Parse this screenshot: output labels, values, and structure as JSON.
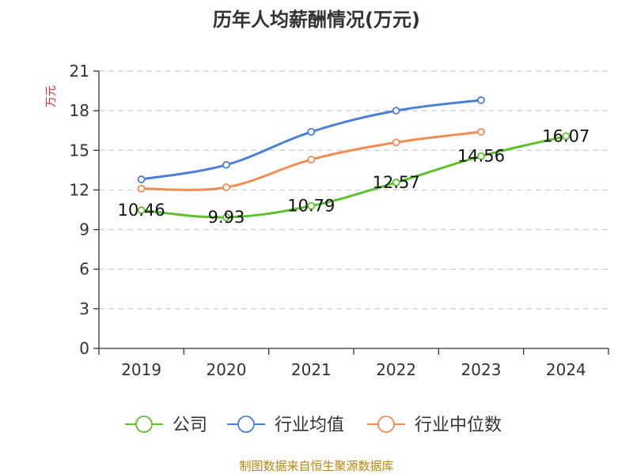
{
  "chart_data": {
    "type": "line",
    "title": "历年人均薪酬情况(万元)",
    "ylabel": "万元",
    "xlabel": "",
    "categories": [
      "2019",
      "2020",
      "2021",
      "2022",
      "2023",
      "2024"
    ],
    "ylim": [
      0,
      21
    ],
    "yticks": [
      0,
      3,
      6,
      9,
      12,
      15,
      18,
      21
    ],
    "grid": "horizontal dashed",
    "legend_position": "bottom",
    "series": [
      {
        "name": "公司",
        "color": "#5ec12e",
        "values": [
          10.46,
          9.93,
          10.79,
          12.57,
          14.56,
          16.07
        ],
        "labels": [
          "10.46",
          "9.93",
          "10.79",
          "12.57",
          "14.56",
          "16.07"
        ]
      },
      {
        "name": "行业均值",
        "color": "#4a7fd6",
        "values": [
          12.8,
          13.9,
          16.4,
          18.0,
          18.8,
          null
        ]
      },
      {
        "name": "行业中位数",
        "color": "#f28c55",
        "values": [
          12.1,
          12.2,
          14.3,
          15.6,
          16.4,
          null
        ]
      }
    ],
    "colors": {
      "ylabel": "#e03030",
      "axis": "#333333",
      "grid": "#cccccc"
    }
  },
  "footer": {
    "source": "制图数据来自恒生聚源数据库",
    "color": "#b8860b"
  }
}
